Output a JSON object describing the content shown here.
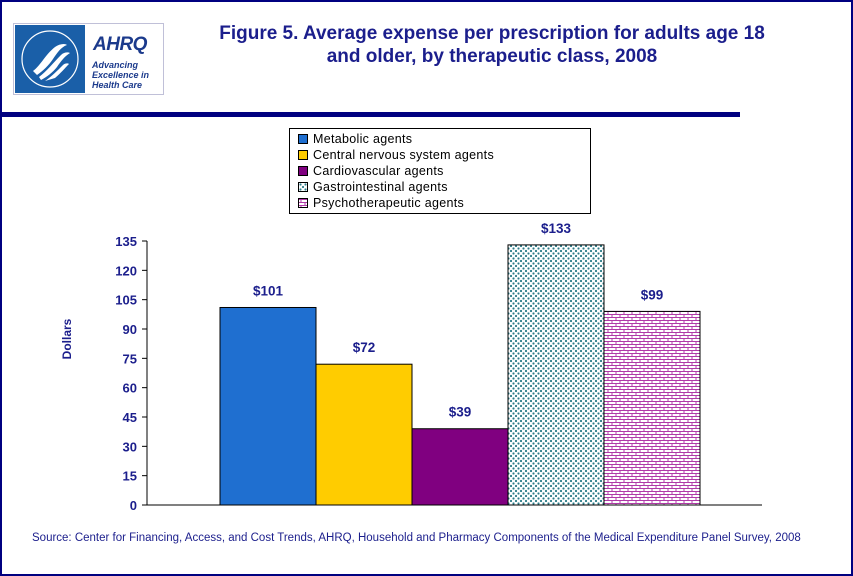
{
  "logo": {
    "name": "AHRQ",
    "tagline": [
      "Advancing",
      "Excellence in",
      "Health Care"
    ]
  },
  "title_line1": "Figure 5. Average expense per prescription for adults age 18",
  "title_line2": "and older, by therapeutic class, 2008",
  "source": "Source: Center for Financing, Access, and Cost Trends, AHRQ, Household and Pharmacy Components of the Medical Expenditure Panel Survey, 2008",
  "colors": {
    "frame": "#000080",
    "title": "#1b1e8c",
    "metabolic": "#1f6fd0",
    "cns": "#ffcc00",
    "cardio": "#800080",
    "gastro_pattern": "#2e7d8a",
    "psycho_pattern": "#b03aa8"
  },
  "chart_data": {
    "type": "bar",
    "title": "Figure 5. Average expense per prescription for adults age 18 and older, by therapeutic class, 2008",
    "ylabel": "Dollars",
    "xlabel": "",
    "ylim": [
      0,
      135
    ],
    "yticks": [
      0,
      15,
      30,
      45,
      60,
      75,
      90,
      105,
      120,
      135
    ],
    "grid": false,
    "legend_position": "top-center",
    "series": [
      {
        "name": "Metabolic agents",
        "value": 101,
        "label": "$101",
        "color": "#1f6fd0",
        "pattern": "solid"
      },
      {
        "name": "Central nervous system agents",
        "value": 72,
        "label": "$72",
        "color": "#ffcc00",
        "pattern": "solid"
      },
      {
        "name": "Cardiovascular agents",
        "value": 39,
        "label": "$39",
        "color": "#800080",
        "pattern": "solid"
      },
      {
        "name": "Gastrointestinal agents",
        "value": 133,
        "label": "$133",
        "color": "#2e7d8a",
        "pattern": "dots"
      },
      {
        "name": "Psychotherapeutic agents",
        "value": 99,
        "label": "$99",
        "color": "#b03aa8",
        "pattern": "bricks"
      }
    ]
  }
}
